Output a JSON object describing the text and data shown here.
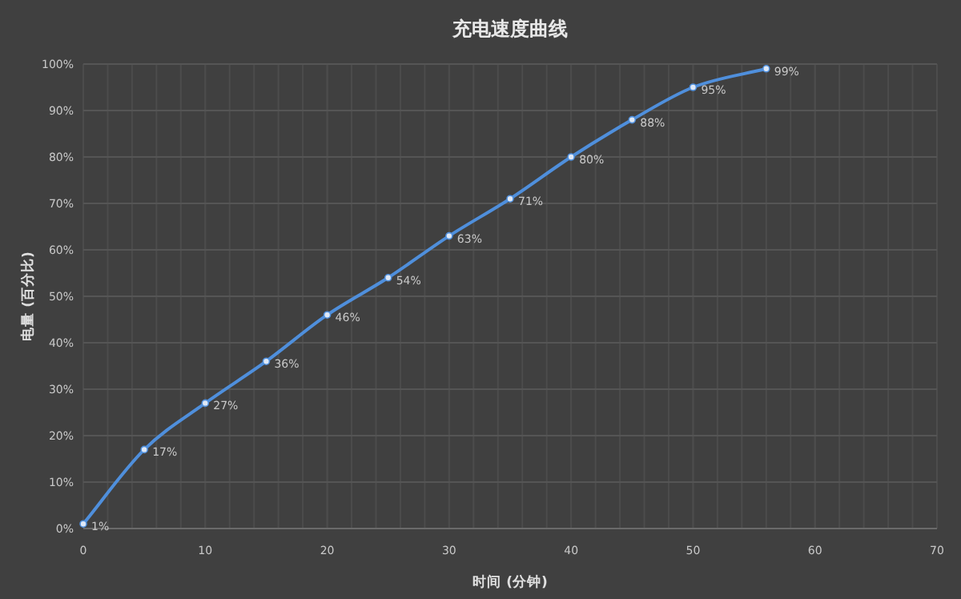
{
  "chart_data": {
    "type": "line",
    "title": "充电速度曲线",
    "xlabel": "时间 (分钟)",
    "ylabel": "电量 (百分比)",
    "x": [
      0,
      5,
      10,
      15,
      20,
      25,
      30,
      35,
      40,
      45,
      50,
      56
    ],
    "series": [
      {
        "color": "#4f8fdc",
        "values": [
          1,
          17,
          27,
          36,
          46,
          54,
          63,
          71,
          80,
          88,
          95,
          99
        ],
        "value_labels": [
          "1%",
          "17%",
          "27%",
          "36%",
          "46%",
          "54%",
          "63%",
          "71%",
          "80%",
          "88%",
          "95%",
          "99%"
        ]
      }
    ],
    "xlim": [
      0,
      70
    ],
    "xticks": [
      0,
      10,
      20,
      30,
      40,
      50,
      60,
      70
    ],
    "ylim": [
      0,
      100
    ],
    "yticks": [
      {
        "value": 0,
        "label": "0%"
      },
      {
        "value": 10,
        "label": "10%"
      },
      {
        "value": 20,
        "label": "20%"
      },
      {
        "value": 30,
        "label": "30%"
      },
      {
        "value": 40,
        "label": "40%"
      },
      {
        "value": 50,
        "label": "50%"
      },
      {
        "value": 60,
        "label": "60%"
      },
      {
        "value": 70,
        "label": "70%"
      },
      {
        "value": 80,
        "label": "80%"
      },
      {
        "value": 90,
        "label": "90%"
      },
      {
        "value": 100,
        "label": "100%"
      }
    ],
    "grid": true,
    "marker": "circle",
    "line_style": "solid"
  }
}
